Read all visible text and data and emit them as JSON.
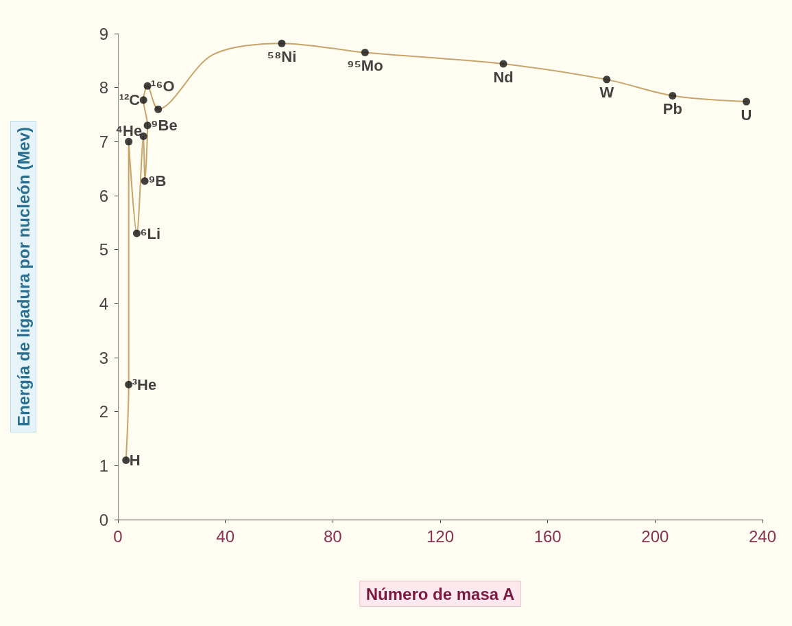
{
  "chart_data": {
    "type": "line",
    "xlabel": "Número de masa A",
    "ylabel": "Energía de ligadura por nucleón (Mev)",
    "xlim": [
      0,
      240
    ],
    "xticks": [
      0,
      40,
      80,
      120,
      160,
      200,
      240
    ],
    "ylim": [
      0,
      9
    ],
    "yticks": [
      0,
      1,
      2,
      3,
      4,
      5,
      6,
      7,
      8,
      9
    ],
    "grid": false,
    "series": [
      {
        "color": "#c9a46a",
        "marker": "none",
        "line_style": "solid",
        "x": [
          3,
          4,
          4,
          7,
          9.5,
          10,
          11,
          9.5,
          11,
          15,
          35,
          61,
          92,
          143.5,
          182,
          206.5,
          234
        ],
        "values": [
          1.1,
          2.5,
          7.0,
          5.3,
          7.1,
          6.27,
          7.3,
          7.77,
          8.03,
          7.6,
          8.6,
          8.82,
          8.65,
          8.44,
          8.15,
          7.85,
          7.74
        ]
      },
      {
        "type": "scatter",
        "color": "#111111",
        "marker": "circle",
        "x": [
          3,
          4,
          4,
          7,
          9.5,
          10,
          11,
          9.5,
          11,
          15,
          61,
          92,
          143.5,
          182,
          206.5,
          234
        ],
        "values": [
          1.1,
          2.5,
          7.0,
          5.3,
          7.1,
          6.27,
          7.3,
          7.77,
          8.03,
          7.6,
          8.82,
          8.65,
          8.44,
          8.15,
          7.85,
          7.74
        ]
      }
    ],
    "annotations": [
      {
        "text": "H",
        "x": 3,
        "y": 1.1
      },
      {
        "text": "³He",
        "x": 4,
        "y": 2.5
      },
      {
        "text": "⁴He",
        "x": 4,
        "y": 7.0
      },
      {
        "text": "⁶Li",
        "x": 7,
        "y": 5.3
      },
      {
        "text": "⁹B",
        "x": 10,
        "y": 6.27
      },
      {
        "text": "⁹Be",
        "x": 11,
        "y": 7.3
      },
      {
        "text": "¹²C",
        "x": 9.5,
        "y": 7.77
      },
      {
        "text": "¹⁶O",
        "x": 11,
        "y": 8.03
      },
      {
        "text": "⁵⁸Ni",
        "x": 61,
        "y": 8.82
      },
      {
        "text": "⁹⁵Mo",
        "x": 92,
        "y": 8.65
      },
      {
        "text": "Nd",
        "x": 143.5,
        "y": 8.44
      },
      {
        "text": "W",
        "x": 182,
        "y": 8.15
      },
      {
        "text": "Pb",
        "x": 206.5,
        "y": 7.85
      },
      {
        "text": "U",
        "x": 234,
        "y": 7.74
      }
    ]
  }
}
